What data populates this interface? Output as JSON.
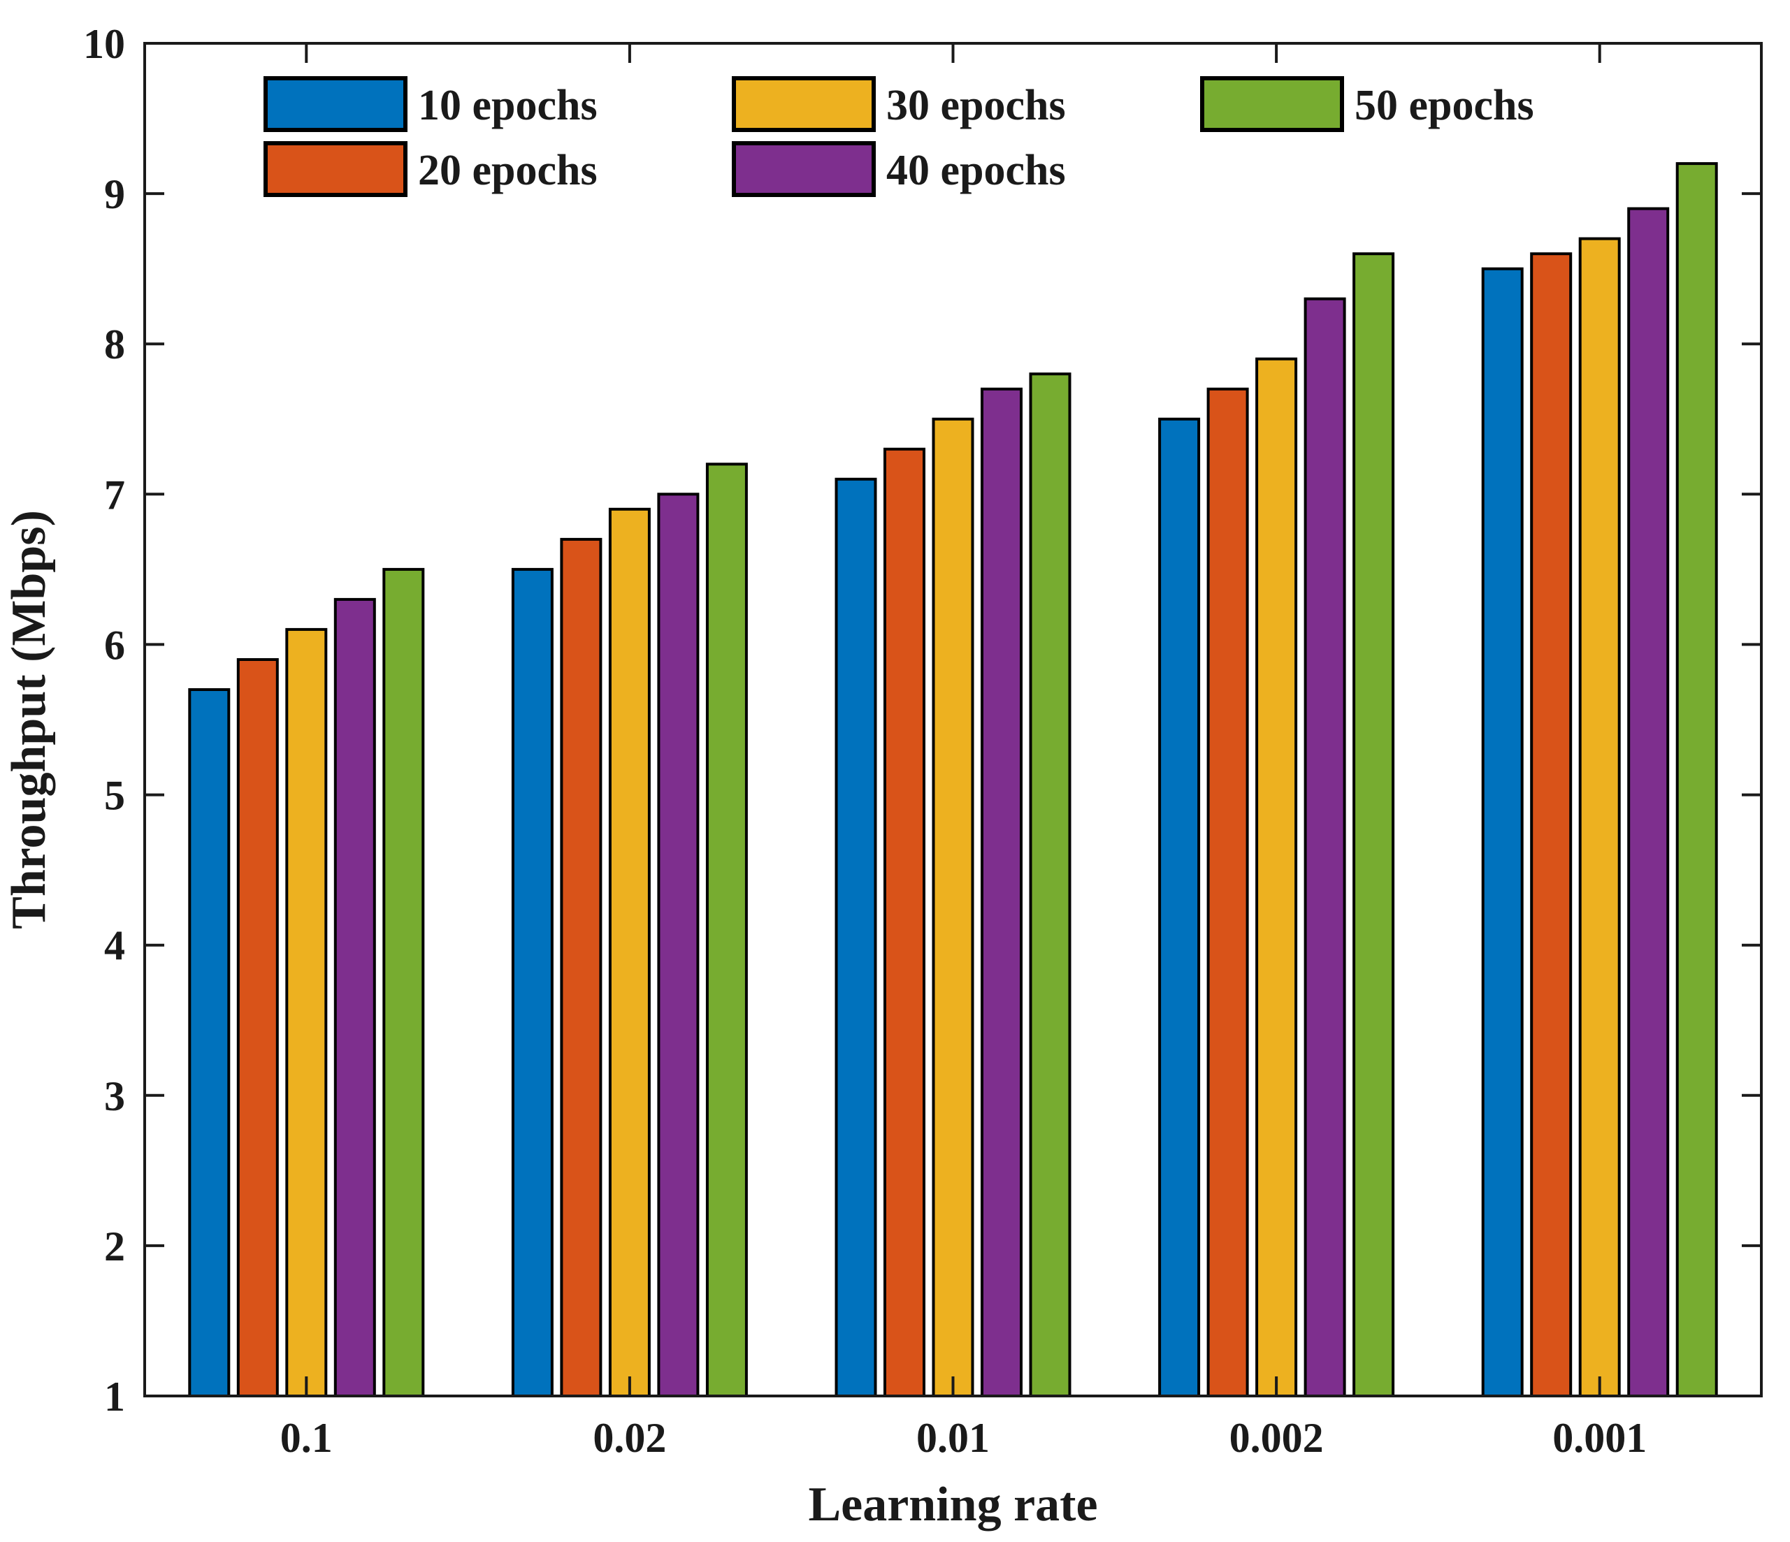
{
  "chart_data": {
    "type": "bar",
    "title": "",
    "xlabel": "Learning rate",
    "ylabel": "Throughput (Mbps)",
    "categories": [
      "0.1",
      "0.02",
      "0.01",
      "0.002",
      "0.001"
    ],
    "series": [
      {
        "name": "10 epochs",
        "color": "#0072BD",
        "values": [
          5.7,
          6.5,
          7.1,
          7.5,
          8.5
        ]
      },
      {
        "name": "20 epochs",
        "color": "#D95319",
        "values": [
          5.9,
          6.7,
          7.3,
          7.7,
          8.6
        ]
      },
      {
        "name": "30 epochs",
        "color": "#EDB120",
        "values": [
          6.1,
          6.9,
          7.5,
          7.9,
          8.7
        ]
      },
      {
        "name": "40 epochs",
        "color": "#7E2F8E",
        "values": [
          6.3,
          7.0,
          7.7,
          8.3,
          8.9
        ]
      },
      {
        "name": "50 epochs",
        "color": "#77AC30",
        "values": [
          6.5,
          7.2,
          7.8,
          8.6,
          9.2
        ]
      }
    ],
    "ylim": [
      1,
      10
    ],
    "yticks": [
      1,
      2,
      3,
      4,
      5,
      6,
      7,
      8,
      9,
      10
    ],
    "bar_baseline": 1,
    "grid": false,
    "legend_position": "top-inside",
    "legend_layout": "2-rows-3-columns",
    "bar_edge_color": "#000000",
    "axis_color": "#1a1a1a",
    "background_color": "#ffffff"
  }
}
